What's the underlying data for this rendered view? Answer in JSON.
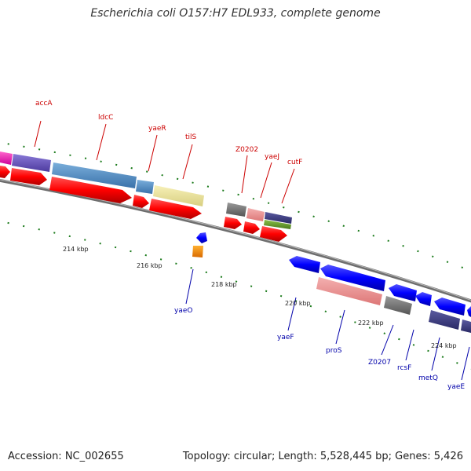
{
  "title": "Escherichia coli O157:H7 EDL933, complete genome",
  "footer": {
    "accession": "Accession: NC_002655",
    "summary": "Topology: circular; Length: 5,528,445 bp; Genes: 5,426"
  },
  "colors": {
    "forward_label": "#cc0000",
    "reverse_label": "#0000aa",
    "backbone": "#888888",
    "tick": "#1a7a1a"
  },
  "bp_labels": [
    "214 kbp",
    "216 kbp",
    "218 kbp",
    "220 kbp",
    "222 kbp",
    "224 kbp"
  ],
  "forward_gene_labels": [
    "accA",
    "ldcC",
    "yaeR",
    "tilS",
    "Z0202",
    "yaeJ",
    "cutF"
  ],
  "reverse_gene_labels": [
    "yaeO",
    "yaeF",
    "proS",
    "Z0207",
    "rcsF",
    "metQ",
    "yaeE"
  ]
}
